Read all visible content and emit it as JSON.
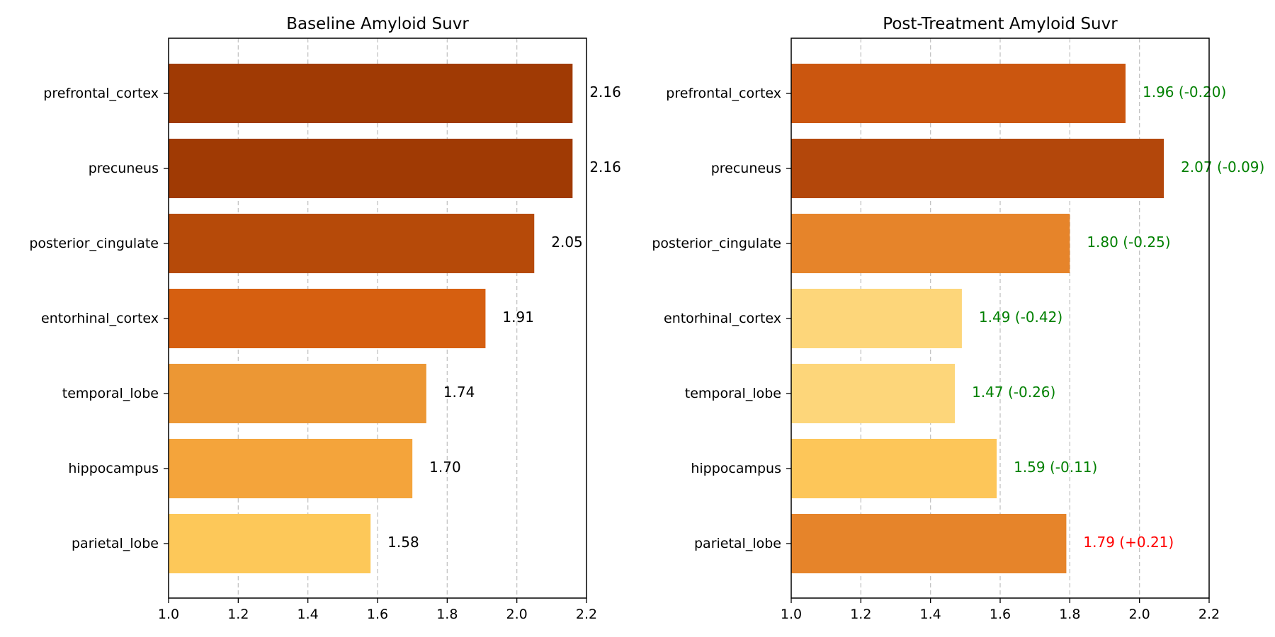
{
  "chart_data": [
    {
      "type": "bar",
      "orientation": "horizontal",
      "title": "Baseline Amyloid Suvr",
      "xlabel": "",
      "ylabel": "",
      "xlim": [
        1.0,
        2.2
      ],
      "xticks": [
        "1.0",
        "1.2",
        "1.4",
        "1.6",
        "1.8",
        "2.0",
        "2.2"
      ],
      "grid": "x-dashed",
      "categories": [
        "prefrontal_cortex",
        "precuneus",
        "posterior_cingulate",
        "entorhinal_cortex",
        "temporal_lobe",
        "hippocampus",
        "parietal_lobe"
      ],
      "values": [
        2.16,
        2.16,
        2.05,
        1.91,
        1.74,
        1.7,
        1.58
      ],
      "data_labels": [
        "2.16",
        "2.16",
        "2.05",
        "1.91",
        "1.74",
        "1.70",
        "1.58"
      ],
      "label_colors": [
        "#000000",
        "#000000",
        "#000000",
        "#000000",
        "#000000",
        "#000000",
        "#000000"
      ],
      "bar_colors": [
        "#a03a04",
        "#a03a04",
        "#b64a09",
        "#d65f10",
        "#ec9734",
        "#f4a43b",
        "#fdc859"
      ]
    },
    {
      "type": "bar",
      "orientation": "horizontal",
      "title": "Post-Treatment Amyloid Suvr",
      "xlabel": "",
      "ylabel": "",
      "xlim": [
        1.0,
        2.2
      ],
      "xticks": [
        "1.0",
        "1.2",
        "1.4",
        "1.6",
        "1.8",
        "2.0",
        "2.2"
      ],
      "grid": "x-dashed",
      "categories": [
        "prefrontal_cortex",
        "precuneus",
        "posterior_cingulate",
        "entorhinal_cortex",
        "temporal_lobe",
        "hippocampus",
        "parietal_lobe"
      ],
      "values": [
        1.96,
        2.07,
        1.8,
        1.49,
        1.47,
        1.59,
        1.79
      ],
      "data_labels": [
        "1.96 (-0.20)",
        "2.07 (-0.09)",
        "1.80 (-0.25)",
        "1.49 (-0.42)",
        "1.47 (-0.26)",
        "1.59 (-0.11)",
        "1.79 (+0.21)"
      ],
      "label_colors": [
        "#008000",
        "#008000",
        "#008000",
        "#008000",
        "#008000",
        "#008000",
        "#ff0000"
      ],
      "bar_colors": [
        "#cb560f",
        "#b3470b",
        "#e6842a",
        "#fdd67a",
        "#fdd67a",
        "#fdc659",
        "#e6842a"
      ]
    }
  ]
}
